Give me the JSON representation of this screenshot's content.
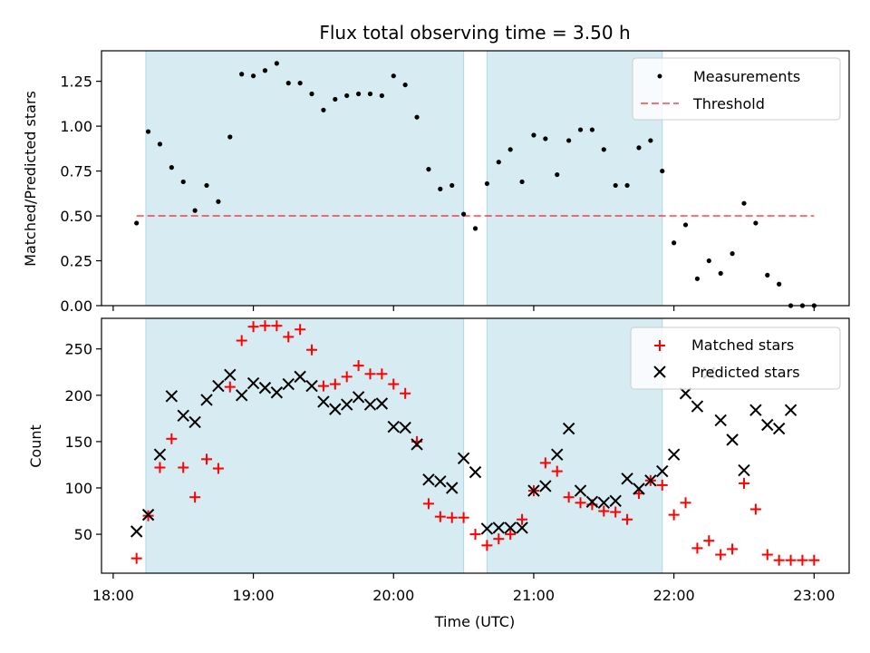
{
  "title": "Flux total observing time = 3.50 h",
  "xlabel": "Time (UTC)",
  "x_ticks": [
    "18:00",
    "19:00",
    "20:00",
    "21:00",
    "22:00",
    "23:00"
  ],
  "colors": {
    "span": "#add8e6",
    "measurements": "#000000",
    "threshold": "#ff0000",
    "matched": "#ff0000",
    "predicted": "#000000"
  },
  "chart_data": [
    {
      "type": "scatter",
      "ylabel": "Matched/Predicted stars",
      "xlim": [
        "17:55",
        "23:15"
      ],
      "ylim": [
        0,
        1.42
      ],
      "y_ticks": [
        "0.00",
        "0.25",
        "0.50",
        "0.75",
        "1.00",
        "1.25"
      ],
      "legend": "top-right",
      "shaded_spans": [
        [
          "18:14",
          "20:30"
        ],
        [
          "20:40",
          "21:55"
        ]
      ],
      "threshold": {
        "name": "Threshold",
        "y": 0.5,
        "x_range": [
          "18:10",
          "23:00"
        ]
      },
      "series": [
        {
          "name": "Measurements",
          "x": [
            "18:10",
            "18:15",
            "18:20",
            "18:25",
            "18:30",
            "18:35",
            "18:40",
            "18:45",
            "18:50",
            "18:55",
            "19:00",
            "19:05",
            "19:10",
            "19:15",
            "19:20",
            "19:25",
            "19:30",
            "19:35",
            "19:40",
            "19:45",
            "19:50",
            "19:55",
            "20:00",
            "20:05",
            "20:10",
            "20:15",
            "20:20",
            "20:25",
            "20:30",
            "20:35",
            "20:40",
            "20:45",
            "20:50",
            "20:55",
            "21:00",
            "21:05",
            "21:10",
            "21:15",
            "21:20",
            "21:25",
            "21:30",
            "21:35",
            "21:40",
            "21:45",
            "21:50",
            "21:55",
            "22:00",
            "22:05",
            "22:10",
            "22:15",
            "22:20",
            "22:25",
            "22:30",
            "22:35",
            "22:40",
            "22:45",
            "22:50",
            "22:55",
            "23:00"
          ],
          "values": [
            0.46,
            0.97,
            0.9,
            0.77,
            0.69,
            0.53,
            0.67,
            0.58,
            0.94,
            1.29,
            1.28,
            1.31,
            1.35,
            1.24,
            1.24,
            1.18,
            1.09,
            1.15,
            1.17,
            1.18,
            1.18,
            1.17,
            1.28,
            1.23,
            1.05,
            0.76,
            0.65,
            0.67,
            0.51,
            0.43,
            0.68,
            0.8,
            0.87,
            0.69,
            0.95,
            0.93,
            0.73,
            0.92,
            0.98,
            0.98,
            0.87,
            0.67,
            0.67,
            0.88,
            0.92,
            0.75,
            0.35,
            0.45,
            0.15,
            0.25,
            0.18,
            0.29,
            0.57,
            0.46,
            0.17,
            0.12,
            0.0,
            0.0,
            0.0
          ]
        }
      ]
    },
    {
      "type": "scatter",
      "ylabel": "Count",
      "xlim": [
        "17:55",
        "23:15"
      ],
      "ylim": [
        8,
        283
      ],
      "y_ticks": [
        "50",
        "100",
        "150",
        "200",
        "250"
      ],
      "legend": "top-right",
      "shaded_spans": [
        [
          "18:14",
          "20:30"
        ],
        [
          "20:40",
          "21:55"
        ]
      ],
      "series": [
        {
          "name": "Matched stars",
          "marker": "plus",
          "x": [
            "18:10",
            "18:15",
            "18:20",
            "18:25",
            "18:30",
            "18:35",
            "18:40",
            "18:45",
            "18:50",
            "18:55",
            "19:00",
            "19:05",
            "19:10",
            "19:15",
            "19:20",
            "19:25",
            "19:30",
            "19:35",
            "19:40",
            "19:45",
            "19:50",
            "19:55",
            "20:00",
            "20:05",
            "20:10",
            "20:15",
            "20:20",
            "20:25",
            "20:30",
            "20:35",
            "20:40",
            "20:45",
            "20:50",
            "20:55",
            "21:00",
            "21:05",
            "21:10",
            "21:15",
            "21:20",
            "21:25",
            "21:30",
            "21:35",
            "21:40",
            "21:45",
            "21:50",
            "21:55",
            "22:00",
            "22:05",
            "22:10",
            "22:15",
            "22:20",
            "22:25",
            "22:30",
            "22:35",
            "22:40",
            "22:45",
            "22:50",
            "22:55",
            "23:00"
          ],
          "values": [
            24,
            70,
            122,
            153,
            122,
            90,
            131,
            121,
            209,
            259,
            274,
            275,
            275,
            263,
            271,
            249,
            210,
            212,
            220,
            232,
            223,
            223,
            212,
            202,
            150,
            83,
            69,
            68,
            68,
            50,
            38,
            45,
            50,
            66,
            97,
            127,
            118,
            90,
            84,
            82,
            75,
            74,
            66,
            94,
            108,
            103,
            71,
            84,
            35,
            43,
            28,
            34,
            105,
            77,
            28,
            22,
            22,
            22,
            22
          ]
        },
        {
          "name": "Predicted stars",
          "marker": "x",
          "x": [
            "18:10",
            "18:15",
            "18:20",
            "18:25",
            "18:30",
            "18:35",
            "18:40",
            "18:45",
            "18:50",
            "18:55",
            "19:00",
            "19:05",
            "19:10",
            "19:15",
            "19:20",
            "19:25",
            "19:30",
            "19:35",
            "19:40",
            "19:45",
            "19:50",
            "19:55",
            "20:00",
            "20:05",
            "20:10",
            "20:15",
            "20:20",
            "20:25",
            "20:30",
            "20:35",
            "20:40",
            "20:45",
            "20:50",
            "20:55",
            "21:00",
            "21:05",
            "21:10",
            "21:15",
            "21:20",
            "21:25",
            "21:30",
            "21:35",
            "21:40",
            "21:45",
            "21:50",
            "21:55",
            "22:00",
            "22:05",
            "22:10",
            "22:15",
            "22:20",
            "22:25",
            "22:30",
            "22:35",
            "22:40",
            "22:45",
            "22:50"
          ],
          "values": [
            53,
            71,
            136,
            199,
            178,
            171,
            195,
            210,
            222,
            200,
            213,
            208,
            203,
            212,
            220,
            210,
            193,
            185,
            190,
            198,
            190,
            191,
            166,
            165,
            147,
            109,
            107,
            100,
            132,
            117,
            56,
            57,
            57,
            57,
            97,
            102,
            136,
            164,
            97,
            85,
            84,
            86,
            110,
            99,
            108,
            118,
            136,
            202,
            188,
            224,
            173,
            152,
            119,
            184,
            168,
            164,
            184
          ]
        }
      ]
    }
  ]
}
